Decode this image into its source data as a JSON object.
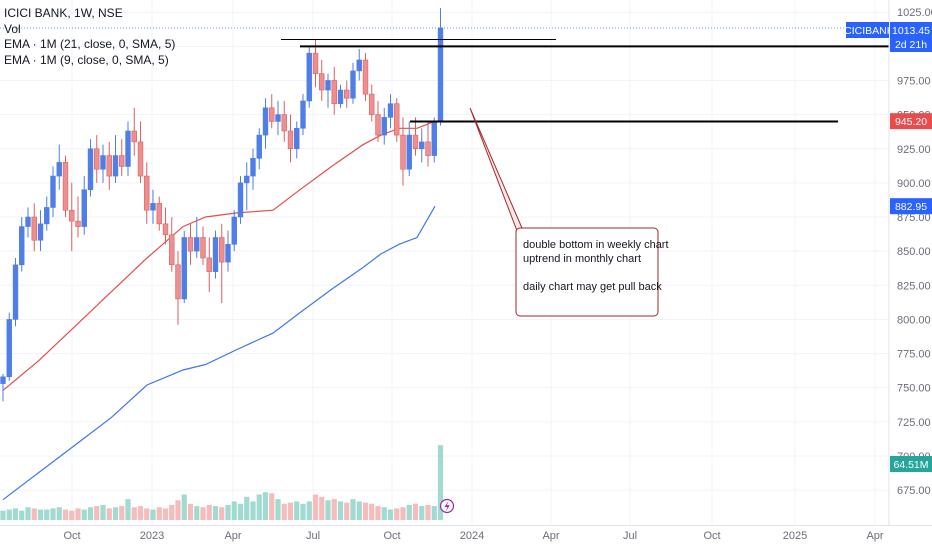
{
  "legend": {
    "symbol_line": "ICICI BANK, 1W, NSE",
    "vol_label": "Vol",
    "ema_21_label": "EMA · 1M (21, close, 0, SMA, 5)",
    "ema_9_label": "EMA · 1M (9, close, 0, SMA, 5)"
  },
  "price_badges": {
    "symbol_badge": "ICICIBANK",
    "last_price": "1013.45",
    "countdown": "2d 21h",
    "ema_red_value": "945.20",
    "ema_blue_value": "882.95",
    "volume_value": "64.51M"
  },
  "annotation": {
    "lines": [
      "double bottom in weekly chart",
      "uptrend in monthly chart",
      "",
      "daily chart may get pull back"
    ]
  },
  "colors": {
    "up": "#4f7ee6",
    "down": "#ef8e8e",
    "ema_red": "#e84c4c",
    "ema_blue": "#3f77e8",
    "volume": "#8fd3c8",
    "volume_down": "#f3b0b0",
    "badge_blue": "#2962ff",
    "badge_red": "#e84c4c",
    "badge_teal": "#26a69a",
    "annotation_border": "#a3272b"
  },
  "chart_data": {
    "type": "candlestick",
    "y_axis_ticks": [
      1025,
      1000,
      975,
      950,
      925,
      900,
      875,
      850,
      825,
      800,
      775,
      750,
      725,
      700,
      675
    ],
    "y_range": [
      662,
      1034
    ],
    "x_axis_labels": [
      "Oct",
      "2023",
      "Apr",
      "Jul",
      "Oct",
      "2024",
      "Apr",
      "Jul",
      "Oct",
      "2025",
      "Apr"
    ],
    "candles": [
      {
        "o": 753,
        "h": 760,
        "l": 740,
        "c": 758
      },
      {
        "o": 758,
        "h": 805,
        "l": 755,
        "c": 800
      },
      {
        "o": 800,
        "h": 845,
        "l": 795,
        "c": 840
      },
      {
        "o": 840,
        "h": 875,
        "l": 835,
        "c": 868
      },
      {
        "o": 868,
        "h": 882,
        "l": 860,
        "c": 875
      },
      {
        "o": 875,
        "h": 885,
        "l": 850,
        "c": 858
      },
      {
        "o": 858,
        "h": 880,
        "l": 850,
        "c": 870
      },
      {
        "o": 870,
        "h": 890,
        "l": 865,
        "c": 882
      },
      {
        "o": 882,
        "h": 912,
        "l": 875,
        "c": 905
      },
      {
        "o": 905,
        "h": 928,
        "l": 895,
        "c": 915
      },
      {
        "o": 915,
        "h": 920,
        "l": 875,
        "c": 880
      },
      {
        "o": 880,
        "h": 900,
        "l": 850,
        "c": 872
      },
      {
        "o": 872,
        "h": 890,
        "l": 860,
        "c": 868
      },
      {
        "o": 868,
        "h": 905,
        "l": 862,
        "c": 895
      },
      {
        "o": 895,
        "h": 932,
        "l": 890,
        "c": 925
      },
      {
        "o": 925,
        "h": 935,
        "l": 900,
        "c": 910
      },
      {
        "o": 910,
        "h": 928,
        "l": 900,
        "c": 920
      },
      {
        "o": 920,
        "h": 930,
        "l": 895,
        "c": 905
      },
      {
        "o": 905,
        "h": 935,
        "l": 900,
        "c": 920
      },
      {
        "o": 920,
        "h": 932,
        "l": 905,
        "c": 912
      },
      {
        "o": 912,
        "h": 945,
        "l": 905,
        "c": 938
      },
      {
        "o": 938,
        "h": 955,
        "l": 920,
        "c": 930
      },
      {
        "o": 930,
        "h": 945,
        "l": 900,
        "c": 905
      },
      {
        "o": 905,
        "h": 915,
        "l": 870,
        "c": 880
      },
      {
        "o": 880,
        "h": 895,
        "l": 870,
        "c": 885
      },
      {
        "o": 885,
        "h": 890,
        "l": 865,
        "c": 870
      },
      {
        "o": 870,
        "h": 882,
        "l": 855,
        "c": 862
      },
      {
        "o": 862,
        "h": 875,
        "l": 835,
        "c": 840
      },
      {
        "o": 840,
        "h": 850,
        "l": 796,
        "c": 815
      },
      {
        "o": 815,
        "h": 865,
        "l": 812,
        "c": 860
      },
      {
        "o": 860,
        "h": 870,
        "l": 840,
        "c": 850
      },
      {
        "o": 850,
        "h": 875,
        "l": 845,
        "c": 860
      },
      {
        "o": 860,
        "h": 868,
        "l": 840,
        "c": 845
      },
      {
        "o": 845,
        "h": 860,
        "l": 820,
        "c": 835
      },
      {
        "o": 835,
        "h": 865,
        "l": 830,
        "c": 860
      },
      {
        "o": 860,
        "h": 870,
        "l": 812,
        "c": 842
      },
      {
        "o": 842,
        "h": 865,
        "l": 835,
        "c": 855
      },
      {
        "o": 855,
        "h": 880,
        "l": 850,
        "c": 875
      },
      {
        "o": 875,
        "h": 905,
        "l": 870,
        "c": 900
      },
      {
        "o": 900,
        "h": 915,
        "l": 880,
        "c": 905
      },
      {
        "o": 905,
        "h": 925,
        "l": 895,
        "c": 918
      },
      {
        "o": 918,
        "h": 940,
        "l": 910,
        "c": 935
      },
      {
        "o": 935,
        "h": 962,
        "l": 925,
        "c": 955
      },
      {
        "o": 955,
        "h": 965,
        "l": 940,
        "c": 945
      },
      {
        "o": 945,
        "h": 960,
        "l": 935,
        "c": 950
      },
      {
        "o": 950,
        "h": 960,
        "l": 930,
        "c": 938
      },
      {
        "o": 938,
        "h": 950,
        "l": 915,
        "c": 925
      },
      {
        "o": 925,
        "h": 945,
        "l": 918,
        "c": 940
      },
      {
        "o": 940,
        "h": 965,
        "l": 935,
        "c": 960
      },
      {
        "o": 960,
        "h": 1000,
        "l": 955,
        "c": 995
      },
      {
        "o": 995,
        "h": 1005,
        "l": 970,
        "c": 980
      },
      {
        "o": 980,
        "h": 990,
        "l": 960,
        "c": 968
      },
      {
        "o": 968,
        "h": 980,
        "l": 955,
        "c": 975
      },
      {
        "o": 975,
        "h": 985,
        "l": 950,
        "c": 958
      },
      {
        "o": 958,
        "h": 972,
        "l": 955,
        "c": 968
      },
      {
        "o": 968,
        "h": 975,
        "l": 955,
        "c": 962
      },
      {
        "o": 962,
        "h": 988,
        "l": 958,
        "c": 982
      },
      {
        "o": 982,
        "h": 998,
        "l": 975,
        "c": 990
      },
      {
        "o": 990,
        "h": 995,
        "l": 960,
        "c": 965
      },
      {
        "o": 965,
        "h": 972,
        "l": 945,
        "c": 950
      },
      {
        "o": 950,
        "h": 960,
        "l": 930,
        "c": 935
      },
      {
        "o": 935,
        "h": 955,
        "l": 928,
        "c": 948
      },
      {
        "o": 948,
        "h": 965,
        "l": 940,
        "c": 958
      },
      {
        "o": 958,
        "h": 962,
        "l": 930,
        "c": 935
      },
      {
        "o": 935,
        "h": 948,
        "l": 898,
        "c": 910
      },
      {
        "o": 910,
        "h": 945,
        "l": 905,
        "c": 935
      },
      {
        "o": 935,
        "h": 948,
        "l": 920,
        "c": 925
      },
      {
        "o": 925,
        "h": 940,
        "l": 915,
        "c": 930
      },
      {
        "o": 930,
        "h": 945,
        "l": 912,
        "c": 920
      },
      {
        "o": 920,
        "h": 948,
        "l": 915,
        "c": 945
      },
      {
        "o": 945,
        "h": 1028,
        "l": 942,
        "c": 1013.45
      }
    ],
    "ema_21_1M": [
      [
        0,
        748
      ],
      [
        8,
        770
      ],
      [
        16,
        795
      ],
      [
        24,
        820
      ],
      [
        32,
        845
      ],
      [
        40,
        868
      ],
      [
        45,
        875
      ],
      [
        52,
        878
      ],
      [
        60,
        880
      ],
      [
        66,
        895
      ],
      [
        73,
        912
      ],
      [
        80,
        928
      ],
      [
        84,
        935
      ],
      [
        88,
        940
      ],
      [
        92,
        940
      ],
      [
        96,
        945.2
      ]
    ],
    "ema_9_1M": [
      [
        0,
        668
      ],
      [
        8,
        688
      ],
      [
        16,
        708
      ],
      [
        24,
        728
      ],
      [
        32,
        752
      ],
      [
        40,
        763
      ],
      [
        45,
        767
      ],
      [
        52,
        778
      ],
      [
        60,
        790
      ],
      [
        66,
        805
      ],
      [
        73,
        822
      ],
      [
        80,
        838
      ],
      [
        84,
        848
      ],
      [
        88,
        855
      ],
      [
        92,
        860
      ],
      [
        96,
        882.95
      ]
    ],
    "volume": [
      8,
      9,
      10,
      8,
      11,
      10,
      9,
      9,
      10,
      11,
      9,
      8,
      10,
      9,
      11,
      12,
      13,
      10,
      11,
      12,
      18,
      11,
      12,
      10,
      9,
      11,
      10,
      13,
      17,
      22,
      14,
      12,
      11,
      13,
      12,
      11,
      13,
      16,
      14,
      20,
      16,
      22,
      24,
      23,
      18,
      14,
      15,
      16,
      14,
      16,
      22,
      20,
      17,
      18,
      16,
      15,
      18,
      16,
      15,
      14,
      12,
      11,
      9,
      10,
      11,
      13,
      14,
      12,
      13,
      12,
      64.51
    ],
    "resistance_lines": [
      {
        "y": 1005,
        "from_index": 39,
        "to_index": 81
      },
      {
        "y": 1000,
        "from_index": 43,
        "to_index": 130
      },
      {
        "y": 945,
        "from_index": 59,
        "to_index": 122
      }
    ]
  }
}
